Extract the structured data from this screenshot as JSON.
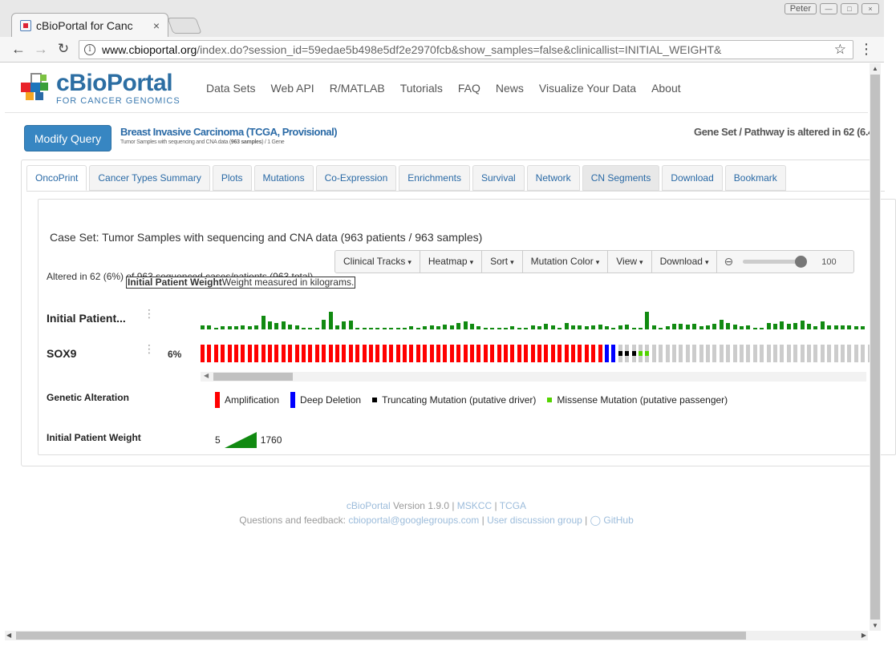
{
  "browser": {
    "tab_title": "cBioPortal for Canc",
    "tab_close": "×",
    "url_host": "www.cbioportal.org",
    "url_path": "/index.do?session_id=59edae5b498e5df2e2970fcb&show_samples=false&clinicallist=INITIAL_WEIGHT&",
    "user_label": "Peter"
  },
  "header": {
    "logo_name": "cBioPortal",
    "logo_sub": "FOR CANCER GENOMICS",
    "nav": [
      "Data Sets",
      "Web API",
      "R/MATLAB",
      "Tutorials",
      "FAQ",
      "News",
      "Visualize Your Data",
      "About"
    ]
  },
  "query": {
    "modify_label": "Modify Query",
    "study_title": "Breast Invasive Carcinoma (TCGA, Provisional)",
    "study_sub_pre": "Tumor Samples with sequencing and CNA data (",
    "study_sub_bold": "963 samples",
    "study_sub_post": ") / 1 Gene",
    "alteration_summary": "Gene Set / Pathway is altered in 62 (6.4"
  },
  "tabs": [
    "OncoPrint",
    "Cancer Types Summary",
    "Plots",
    "Mutations",
    "Co-Expression",
    "Enrichments",
    "Survival",
    "Network",
    "CN Segments",
    "Download",
    "Bookmark"
  ],
  "oncoprint": {
    "case_set": "Case Set: Tumor Samples with sequencing and CNA data (963 patients / 963 samples)",
    "toolbar": [
      "Clinical Tracks",
      "Heatmap",
      "Sort",
      "Mutation Color",
      "View",
      "Download"
    ],
    "zoom_value": "100",
    "altered_text": "Altered in 62 (6%) of 963 sequenced cases/patients (963 total)",
    "tooltip_bold": "Initial Patient Weight",
    "tooltip_text": "Weight measured in kilograms.",
    "tracks": [
      {
        "label": "Initial Patient...",
        "pct": ""
      },
      {
        "label": "SOX9",
        "pct": "6%"
      }
    ],
    "legend_genetic_title": "Genetic Alteration",
    "legend_items": [
      {
        "label": "Amplification",
        "color": "#ff0000"
      },
      {
        "label": "Deep Deletion",
        "color": "#0000ff"
      },
      {
        "label": "Truncating Mutation (putative driver)",
        "color": "#000000"
      },
      {
        "label": "Missense Mutation (putative passenger)",
        "color": "#53d400"
      }
    ],
    "legend_weight_title": "Initial Patient Weight",
    "weight_min": "5",
    "weight_max": "1760",
    "colors": {
      "amp": "#ff0000",
      "deep_del": "#0000ff",
      "trunc": "#000000",
      "missense": "#53d400",
      "none": "#cccccc",
      "weight": "#118a11"
    },
    "weight_levels": [
      0.2,
      0.2,
      0.1,
      0.15,
      0.15,
      0.15,
      0.2,
      0.15,
      0.2,
      0.7,
      0.4,
      0.35,
      0.4,
      0.25,
      0.2,
      0.1,
      0.1,
      0.1,
      0.5,
      0.9,
      0.2,
      0.4,
      0.45,
      0.1,
      0.1,
      0.1,
      0.1,
      0.1,
      0.1,
      0.1,
      0.1,
      0.15,
      0.1,
      0.15,
      0.2,
      0.15,
      0.25,
      0.2,
      0.35,
      0.4,
      0.3,
      0.15,
      0.1,
      0.1,
      0.1,
      0.1,
      0.15,
      0.1,
      0.1,
      0.2,
      0.15,
      0.3,
      0.2,
      0.1,
      0.35,
      0.2,
      0.2,
      0.15,
      0.2,
      0.25,
      0.15,
      0.1,
      0.2,
      0.25,
      0.1,
      0.1,
      0.9,
      0.2,
      0.1,
      0.15,
      0.3,
      0.3,
      0.25,
      0.3,
      0.15,
      0.2,
      0.3,
      0.5,
      0.35,
      0.25,
      0.15,
      0.2,
      0.1,
      0.1,
      0.35,
      0.3,
      0.4,
      0.3,
      0.35,
      0.45,
      0.3,
      0.15,
      0.4,
      0.2,
      0.2,
      0.2,
      0.2,
      0.15,
      0.15
    ],
    "sox9_states": [
      "amp",
      "amp",
      "amp",
      "amp",
      "amp",
      "amp",
      "amp",
      "amp",
      "amp",
      "amp",
      "amp",
      "amp",
      "amp",
      "amp",
      "amp",
      "amp",
      "amp",
      "amp",
      "amp",
      "amp",
      "amp",
      "amp",
      "amp",
      "amp",
      "amp",
      "amp",
      "amp",
      "amp",
      "amp",
      "amp",
      "amp",
      "amp",
      "amp",
      "amp",
      "amp",
      "amp",
      "amp",
      "amp",
      "amp",
      "amp",
      "amp",
      "amp",
      "amp",
      "amp",
      "amp",
      "amp",
      "amp",
      "amp",
      "amp",
      "amp",
      "amp",
      "amp",
      "amp",
      "amp",
      "amp",
      "amp",
      "amp",
      "amp",
      "amp",
      "amp",
      "deep_del",
      "deep_del",
      "trunc",
      "trunc",
      "trunc",
      "missense",
      "missense",
      "none",
      "none",
      "none",
      "none",
      "none",
      "none",
      "none",
      "none",
      "none",
      "none",
      "none",
      "none",
      "none",
      "none",
      "none",
      "none",
      "none",
      "none",
      "none",
      "none",
      "none",
      "none",
      "none",
      "none",
      "none",
      "none",
      "none",
      "none",
      "none",
      "none",
      "none",
      "none",
      "none",
      "none"
    ]
  },
  "footer": {
    "line1_link": "cBioPortal",
    "line1_version": " Version 1.9.0 | ",
    "line1_mskcc": "MSKCC",
    "line1_sep": " | ",
    "line1_tcga": "TCGA",
    "line2_pre": "Questions and feedback: ",
    "line2_email": "cbioportal@googlegroups.com",
    "line2_sep": " | ",
    "line2_group": "User discussion group",
    "line2_sep2": " | ",
    "line2_github": "GitHub"
  }
}
